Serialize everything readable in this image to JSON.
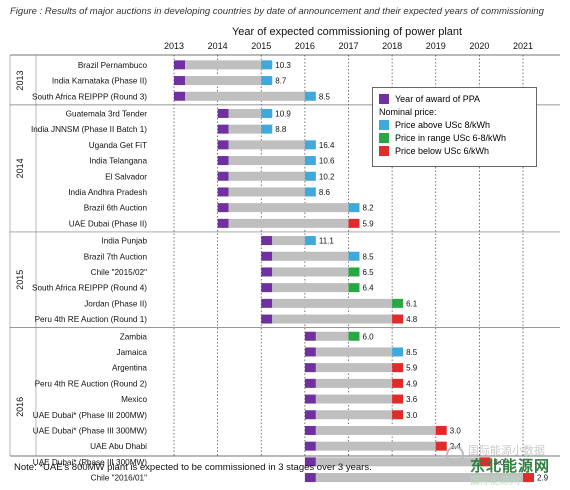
{
  "caption": "Figure   : Results of major auctions in developing countries by date of announcement and their expected years of commissioning",
  "footnote": "Note: *UAE's 800MW plant is expected to be commissioned in 3 stages over 3 years.",
  "watermark": {
    "line1": "国际能源小数据",
    "line2": "东北能源网",
    "line3": "国际能源网"
  },
  "legend": {
    "award_label": "Year of award of PPA",
    "nominal_label": "Nominal price:",
    "above_label": "Price above USc 8/kWh",
    "range_label": "Price in range USc 6-8/kWh",
    "below_label": "Price below USc 6/kWh"
  },
  "colors": {
    "award": "#7030a0",
    "above": "#3fa9dc",
    "range": "#27a844",
    "below": "#e02b2b",
    "bar": "#bfbfbf"
  },
  "chart_data": {
    "type": "bar",
    "title": "Year of expected commissioning of power plant",
    "xlim": [
      2013,
      2021
    ],
    "xticks": [
      "2013",
      "2014",
      "2015",
      "2016",
      "2017",
      "2018",
      "2019",
      "2020",
      "2021"
    ],
    "groups": [
      {
        "year": "2013",
        "rows": [
          {
            "name": "Brazil Pernambuco",
            "award": 2013,
            "commission": 2015,
            "price": "10.3",
            "band": "above"
          },
          {
            "name": "India Karnataka (Phase II)",
            "award": 2013,
            "commission": 2015,
            "price": "8.7",
            "band": "above"
          },
          {
            "name": "South Africa REIPPP (Round 3)",
            "award": 2013,
            "commission": 2016,
            "price": "8.5",
            "band": "above"
          }
        ]
      },
      {
        "year": "2014",
        "rows": [
          {
            "name": "Guatemala 3rd Tender",
            "award": 2014,
            "commission": 2015,
            "price": "10.9",
            "band": "above"
          },
          {
            "name": "India JNNSM (Phase II Batch 1)",
            "award": 2014,
            "commission": 2015,
            "price": "8.8",
            "band": "above"
          },
          {
            "name": "Uganda Get FiT",
            "award": 2014,
            "commission": 2016,
            "price": "16.4",
            "band": "above"
          },
          {
            "name": "India Telangana",
            "award": 2014,
            "commission": 2016,
            "price": "10.6",
            "band": "above"
          },
          {
            "name": "El Salvador",
            "award": 2014,
            "commission": 2016,
            "price": "10.2",
            "band": "above"
          },
          {
            "name": "India Andhra Pradesh",
            "award": 2014,
            "commission": 2016,
            "price": "8.6",
            "band": "above"
          },
          {
            "name": "Brazil 6th Auction",
            "award": 2014,
            "commission": 2017,
            "price": "8.2",
            "band": "above"
          },
          {
            "name": "UAE Dubai (Phase II)",
            "award": 2014,
            "commission": 2017,
            "price": "5.9",
            "band": "below"
          }
        ]
      },
      {
        "year": "2015",
        "rows": [
          {
            "name": "India Punjab",
            "award": 2015,
            "commission": 2016,
            "price": "11.1",
            "band": "above"
          },
          {
            "name": "Brazil 7th Auction",
            "award": 2015,
            "commission": 2017,
            "price": "8.5",
            "band": "above"
          },
          {
            "name": "Chile \"2015/02\"",
            "award": 2015,
            "commission": 2017,
            "price": "6.5",
            "band": "range"
          },
          {
            "name": "South Africa REIPPP (Round 4)",
            "award": 2015,
            "commission": 2017,
            "price": "6.4",
            "band": "range"
          },
          {
            "name": "Jordan (Phase II)",
            "award": 2015,
            "commission": 2018,
            "price": "6.1",
            "band": "range"
          },
          {
            "name": "Peru 4th RE Auction (Round 1)",
            "award": 2015,
            "commission": 2018,
            "price": "4.8",
            "band": "below"
          }
        ]
      },
      {
        "year": "2016",
        "rows": [
          {
            "name": "Zambia",
            "award": 2016,
            "commission": 2017,
            "price": "6.0",
            "band": "range"
          },
          {
            "name": "Jamaica",
            "award": 2016,
            "commission": 2018,
            "price": "8.5",
            "band": "above"
          },
          {
            "name": "Argentina",
            "award": 2016,
            "commission": 2018,
            "price": "5.9",
            "band": "below"
          },
          {
            "name": "Peru 4th RE Auction (Round 2)",
            "award": 2016,
            "commission": 2018,
            "price": "4.9",
            "band": "below"
          },
          {
            "name": "Mexico",
            "award": 2016,
            "commission": 2018,
            "price": "3.6",
            "band": "below"
          },
          {
            "name": "UAE Dubai* (Phase III 200MW)",
            "award": 2016,
            "commission": 2018,
            "price": "3.0",
            "band": "below"
          },
          {
            "name": "UAE Dubai* (Phase III 300MW)",
            "award": 2016,
            "commission": 2019,
            "price": "3.0",
            "band": "below"
          },
          {
            "name": "UAE Abu Dhabi",
            "award": 2016,
            "commission": 2019,
            "price": "2.4",
            "band": "below"
          },
          {
            "name": "UAE Dubai* (Phase III 300MW)",
            "award": 2016,
            "commission": 2020,
            "price": "3.0",
            "band": "below"
          },
          {
            "name": "Chile \"2016/01\"",
            "award": 2016,
            "commission": 2021,
            "price": "2.9",
            "band": "below"
          }
        ]
      }
    ]
  }
}
